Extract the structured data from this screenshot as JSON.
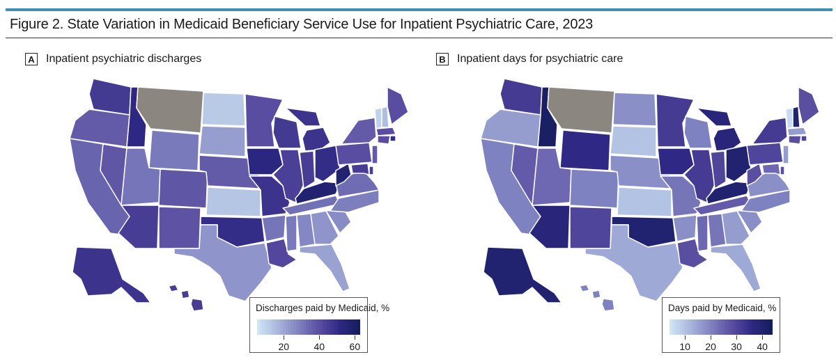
{
  "figure": {
    "title": "Figure 2. State Variation in Medicaid Beneficiary Service Use for Inpatient Psychiatric Care, 2023"
  },
  "panels": [
    {
      "letter": "A",
      "title": "Inpatient psychiatric discharges",
      "legend": {
        "title": "Discharges paid by Medicaid, %",
        "ticks": [
          "20",
          "40",
          "60"
        ],
        "range": [
          5,
          63
        ]
      },
      "states": {
        "WA": 46,
        "OR": 37,
        "CA": 35,
        "NV": 38,
        "ID": 52,
        "MT": null,
        "WY": 30,
        "UT": 31,
        "AZ": 45,
        "CO": 38,
        "NM": 39,
        "ND": 12,
        "SD": 22,
        "NE": 37,
        "KS": 13,
        "OK": 50,
        "TX": 24,
        "MN": 40,
        "IA": 53,
        "MO": 48,
        "AR": 31,
        "LA": 42,
        "WI": 46,
        "IL": 44,
        "MI": 48,
        "IN": 45,
        "OH": 50,
        "KY": 57,
        "TN": 32,
        "MS": 30,
        "AL": 27,
        "GA": 24,
        "FL": 21,
        "SC": 26,
        "NC": 29,
        "VA": 33,
        "WV": 57,
        "PA": 40,
        "NY": 37,
        "ME": 40,
        "VT": 10,
        "NH": 15,
        "MA": 40,
        "RI": 50,
        "CT": 40,
        "NJ": 37,
        "DE": 45,
        "MD": 45,
        "AK": 48,
        "HI": 45
      }
    },
    {
      "letter": "B",
      "title": "Inpatient days for psychiatric care",
      "legend": {
        "title": "Days paid by Medicaid, %",
        "ticks": [
          "10",
          "20",
          "30",
          "40"
        ],
        "range": [
          4,
          44
        ]
      },
      "states": {
        "WA": 32,
        "OR": 16,
        "CA": 20,
        "NV": 26,
        "ID": 42,
        "MT": null,
        "WY": 36,
        "UT": 24,
        "AZ": 38,
        "CO": 20,
        "NM": 30,
        "ND": 18,
        "SD": 10,
        "NE": 18,
        "KS": 10,
        "OK": 40,
        "TX": 14,
        "MN": 32,
        "IA": 36,
        "MO": 22,
        "AR": 18,
        "LA": 28,
        "WI": 20,
        "IL": 32,
        "MI": 38,
        "IN": 30,
        "OH": 40,
        "KY": 40,
        "TN": 26,
        "MS": 24,
        "AL": 22,
        "GA": 16,
        "FL": 14,
        "SC": 18,
        "NC": 20,
        "VA": 18,
        "WV": 28,
        "PA": 30,
        "NY": 32,
        "ME": 28,
        "VT": 6,
        "NH": 40,
        "MA": 16,
        "RI": 30,
        "CT": 28,
        "NJ": 16,
        "DE": 28,
        "MD": 24,
        "AK": 40,
        "HI": 20
      }
    }
  ],
  "colors": {
    "scale": [
      "#cfe8f6",
      "#aab6dc",
      "#7f82c0",
      "#5a4ea1",
      "#2f2885",
      "#141d5a"
    ],
    "missing": "#8b8680",
    "accent_rule": "#3f8fb5"
  }
}
